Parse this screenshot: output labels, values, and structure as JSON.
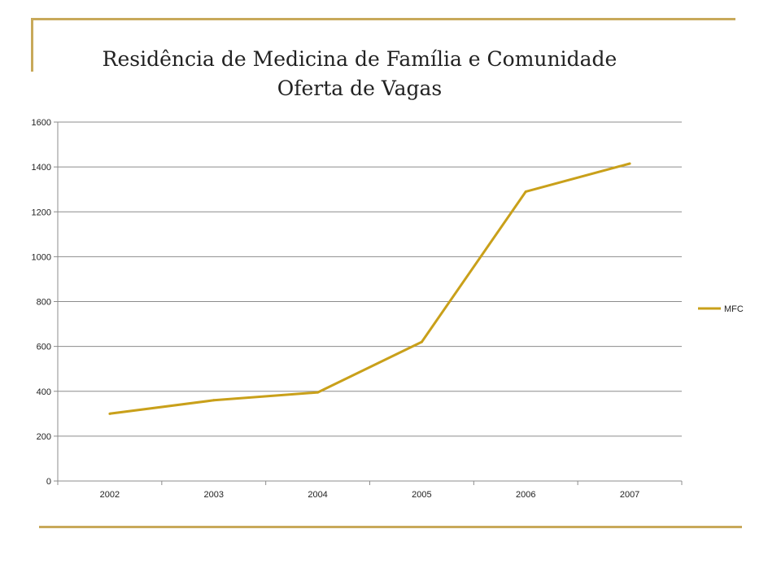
{
  "chart_data": {
    "type": "line",
    "title": "Residência de Medicina de Família e Comunidade",
    "subtitle": "Oferta de Vagas",
    "categories": [
      "2002",
      "2003",
      "2004",
      "2005",
      "2006",
      "2007"
    ],
    "series": [
      {
        "name": "MFC",
        "values": [
          300,
          360,
          395,
          620,
          1290,
          1415
        ],
        "color": "#c9a01a"
      }
    ],
    "ylim": [
      0,
      1600
    ],
    "yticks": [
      "0",
      "200",
      "400",
      "600",
      "800",
      "1000",
      "1200",
      "1400",
      "1600"
    ],
    "grid": true,
    "legend": "right"
  },
  "colors": {
    "accent_line": "#c8a95a",
    "series": "#c9a01a"
  }
}
